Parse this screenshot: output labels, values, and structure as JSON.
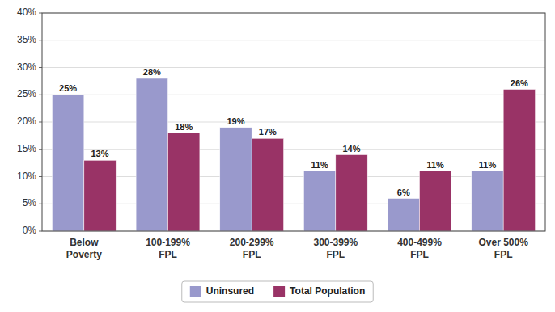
{
  "chart_data": {
    "type": "bar",
    "categories": [
      "Below\nPoverty",
      "100-199%\nFPL",
      "200-299%\nFPL",
      "300-399%\nFPL",
      "400-499%\nFPL",
      "Over 500%\nFPL"
    ],
    "series": [
      {
        "name": "Uninsured",
        "color": "#9999cc",
        "values": [
          25,
          28,
          19,
          11,
          6,
          11
        ],
        "value_labels": [
          "25%",
          "28%",
          "19%",
          "11%",
          "6%",
          "11%"
        ]
      },
      {
        "name": "Total Population",
        "color": "#993366",
        "values": [
          13,
          18,
          17,
          14,
          11,
          26
        ],
        "value_labels": [
          "13%",
          "18%",
          "17%",
          "14%",
          "11%",
          "26%"
        ]
      }
    ],
    "ylim": [
      0,
      40
    ],
    "yticks": [
      {
        "value": 0,
        "label": "0%"
      },
      {
        "value": 5,
        "label": "5%"
      },
      {
        "value": 10,
        "label": "10%"
      },
      {
        "value": 15,
        "label": "15%"
      },
      {
        "value": 20,
        "label": "20%"
      },
      {
        "value": 25,
        "label": "25%"
      },
      {
        "value": 30,
        "label": "30%"
      },
      {
        "value": 35,
        "label": "35%"
      },
      {
        "value": 40,
        "label": "40%"
      }
    ],
    "grid": true,
    "legend": "bottom",
    "data_labels": true
  }
}
